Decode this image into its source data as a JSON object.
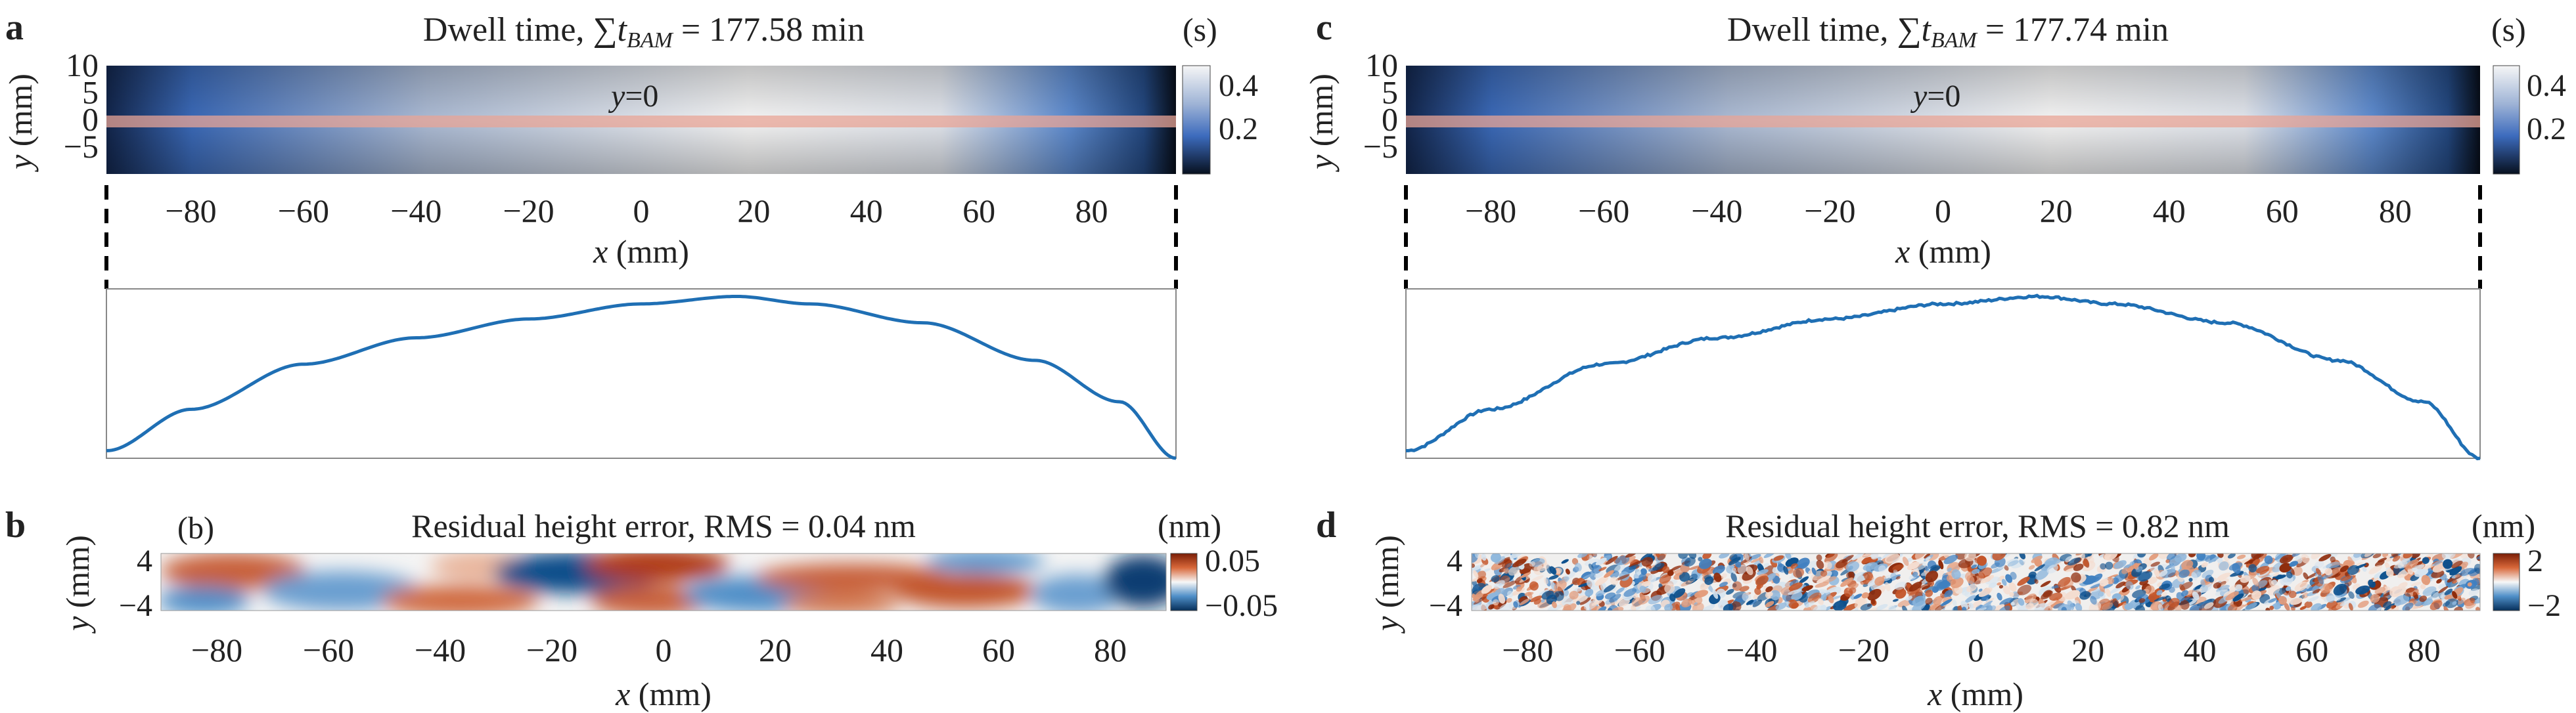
{
  "panels": {
    "a": {
      "letter": "a",
      "title_prefix": "Dwell time, ",
      "title_sum": "∑",
      "title_t": "t",
      "title_sub": "BAM",
      "title_suffix": " = 177.58 min",
      "unit": "(s)",
      "y_label": "y",
      "y_unit": " (mm)",
      "x_label": "x",
      "x_unit": " (mm)",
      "line_label_var": "y",
      "line_label_val": "=0",
      "colorbar_ticks": [
        "0.4",
        "0.2"
      ]
    },
    "b": {
      "letter": "b",
      "inner_label": "(b)",
      "title": "Residual height error, RMS = 0.04 nm",
      "unit": "(nm)",
      "y_label": "y",
      "y_unit": " (mm)",
      "x_label": "x",
      "x_unit": " (mm)",
      "colorbar_ticks": [
        "0.05",
        "−0.05"
      ]
    },
    "c": {
      "letter": "c",
      "title_prefix": "Dwell time, ",
      "title_sum": "∑",
      "title_t": "t",
      "title_sub": "BAM",
      "title_suffix": " = 177.74 min",
      "unit": "(s)",
      "y_label": "y",
      "y_unit": " (mm)",
      "x_label": "x",
      "x_unit": " (mm)",
      "line_label_var": "y",
      "line_label_val": "=0",
      "colorbar_ticks": [
        "0.4",
        "0.2"
      ]
    },
    "d": {
      "letter": "d",
      "title": "Residual height error, RMS = 0.82 nm",
      "unit": "(nm)",
      "y_label": "y",
      "y_unit": " (mm)",
      "x_label": "x",
      "x_unit": " (mm)",
      "colorbar_ticks": [
        "2",
        "−2"
      ]
    }
  },
  "chart_data": [
    {
      "id": "a",
      "type": "heatmap",
      "x_range": [
        -95,
        95
      ],
      "y_range": [
        -10,
        10
      ],
      "x_ticks": [
        "−80",
        "−60",
        "−40",
        "−20",
        "0",
        "20",
        "40",
        "60",
        "80"
      ],
      "y_ticks": [
        "10",
        "5",
        "0",
        "−5"
      ],
      "colorbar_range": [
        0,
        0.45
      ],
      "highlight_line": "y=0",
      "peak_x": 17
    },
    {
      "id": "a-profile",
      "type": "line",
      "x": [
        -95,
        -80,
        -60,
        -40,
        -20,
        0,
        17,
        30,
        50,
        70,
        85,
        95
      ],
      "y": [
        0.02,
        0.13,
        0.25,
        0.32,
        0.37,
        0.41,
        0.43,
        0.41,
        0.36,
        0.26,
        0.15,
        0.0
      ],
      "ylim": [
        0,
        0.45
      ]
    },
    {
      "id": "b",
      "type": "heatmap",
      "x_range": [
        -90,
        90
      ],
      "y_range": [
        -5,
        5
      ],
      "x_ticks": [
        "−80",
        "−60",
        "−40",
        "−20",
        "0",
        "20",
        "40",
        "60",
        "80"
      ],
      "y_ticks": [
        "4",
        "−4"
      ],
      "colorbar_range": [
        -0.05,
        0.05
      ]
    },
    {
      "id": "c",
      "type": "heatmap",
      "x_range": [
        -95,
        95
      ],
      "y_range": [
        -10,
        10
      ],
      "x_ticks": [
        "−80",
        "−60",
        "−40",
        "−20",
        "0",
        "20",
        "40",
        "60",
        "80"
      ],
      "y_ticks": [
        "10",
        "5",
        "0",
        "−5"
      ],
      "colorbar_range": [
        0,
        0.45
      ],
      "highlight_line": "y=0",
      "peak_x": 17
    },
    {
      "id": "c-profile",
      "type": "line",
      "x": [
        -95,
        -80,
        -60,
        -40,
        -20,
        0,
        17,
        30,
        50,
        70,
        85,
        95
      ],
      "y": [
        0.02,
        0.13,
        0.25,
        0.32,
        0.37,
        0.41,
        0.43,
        0.41,
        0.36,
        0.26,
        0.15,
        0.0
      ],
      "ylim": [
        0,
        0.45
      ],
      "noisy": true
    },
    {
      "id": "d",
      "type": "heatmap",
      "x_range": [
        -90,
        90
      ],
      "y_range": [
        -5,
        5
      ],
      "x_ticks": [
        "−80",
        "−60",
        "−40",
        "−20",
        "0",
        "20",
        "40",
        "60",
        "80"
      ],
      "y_ticks": [
        "4",
        "−4"
      ],
      "colorbar_range": [
        -2,
        2
      ]
    }
  ],
  "colors": {
    "profile_line": "#1f6fb4",
    "highlight_line": "#e8a496",
    "dwell_low": "#0b1a2e",
    "dwell_mid": "#4a7ac4",
    "dwell_high": "#f5f5f5",
    "div_neg": "#0b4f8c",
    "div_pos": "#b33a10"
  }
}
